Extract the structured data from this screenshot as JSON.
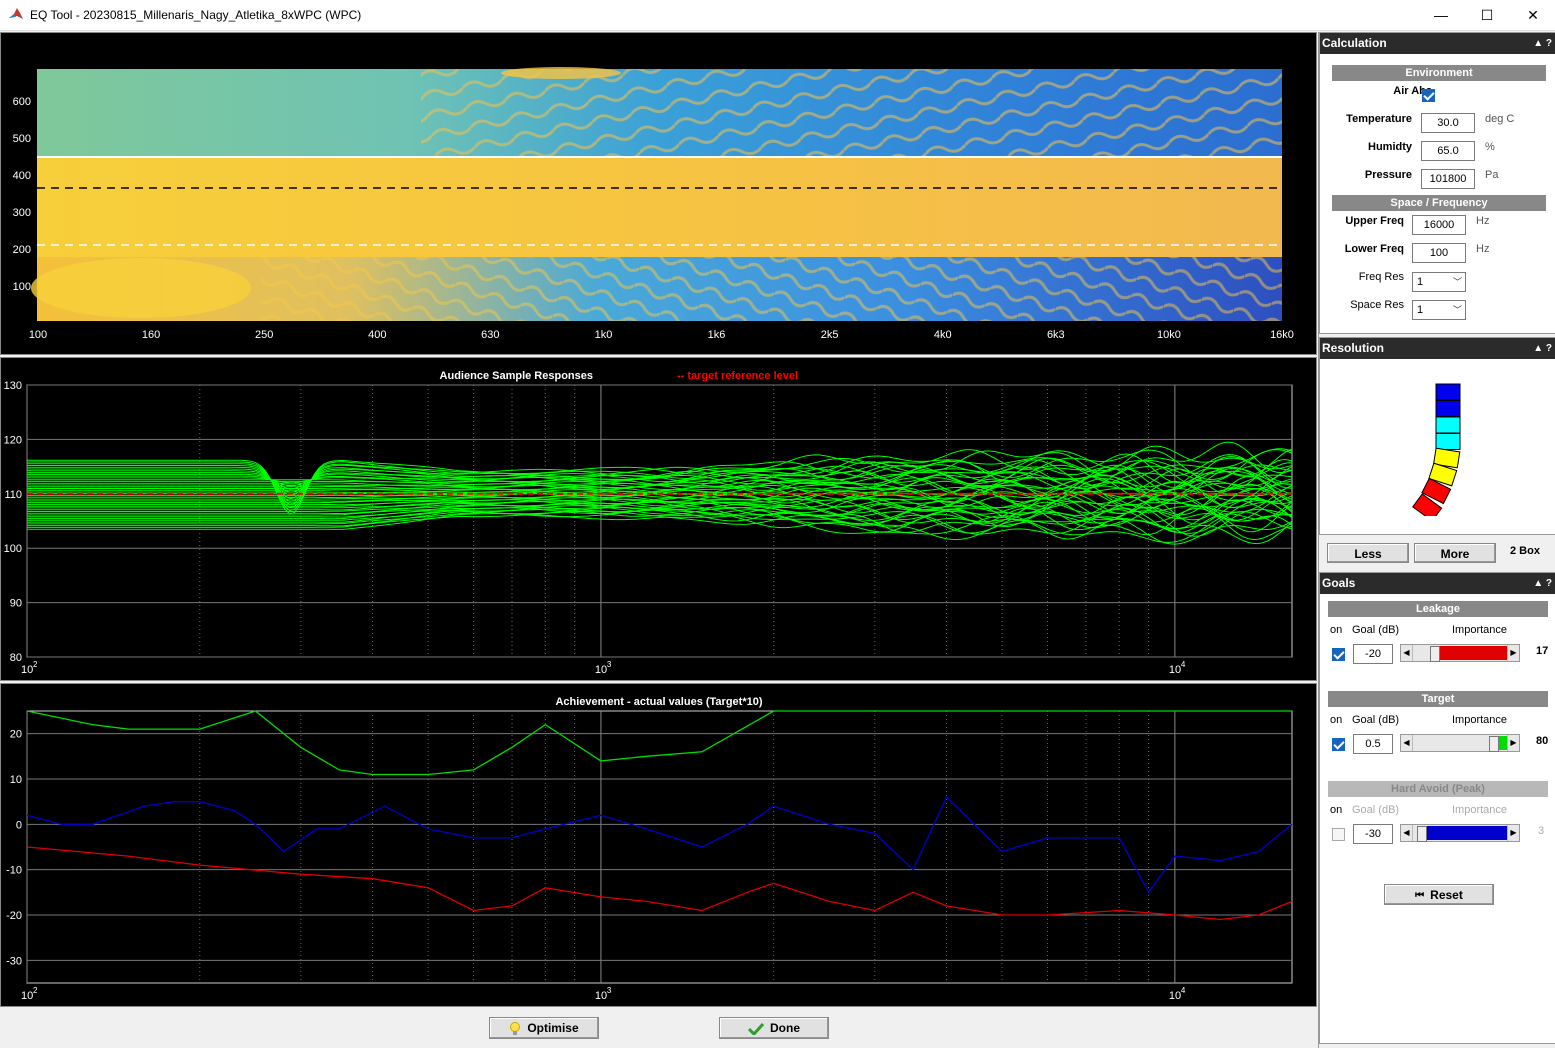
{
  "window": {
    "title": "EQ Tool - 20230815_Millenaris_Nagy_Atletika_8xWPC (WPC)",
    "minimize": "—",
    "maximize": "☐",
    "close": "✕"
  },
  "heatmap": {
    "y_ticks": [
      "600",
      "500",
      "400",
      "300",
      "200",
      "100"
    ],
    "x_ticks": [
      "100",
      "160",
      "250",
      "400",
      "630",
      "1k0",
      "1k6",
      "2k5",
      "4k0",
      "6k3",
      "10k0",
      "16k0"
    ]
  },
  "responses": {
    "title": "Audience Sample Responses",
    "subtitle": "-- target reference level",
    "y_ticks": [
      "130",
      "120",
      "110",
      "100",
      "90",
      "80"
    ],
    "x_ticks": [
      "10",
      "10",
      "10"
    ],
    "x_exp": [
      "2",
      "3",
      "4"
    ],
    "line_color": "#00ff00",
    "target_color": "#ff0000"
  },
  "chart_data": [
    {
      "type": "line",
      "title": "Audience Sample Responses",
      "xscale": "log",
      "xlim": [
        100,
        16000
      ],
      "ylim": [
        80,
        130
      ],
      "series": [
        {
          "name": "target reference level",
          "x": [
            100,
            16000
          ],
          "values": [
            110,
            110
          ]
        }
      ]
    },
    {
      "type": "line",
      "title": "Achievement - actual values (Target*10)",
      "xscale": "log",
      "xlim": [
        100,
        16000
      ],
      "ylim": [
        -35,
        25
      ],
      "series": [
        {
          "x": [
            100,
            130,
            150,
            200,
            250,
            300,
            350,
            400,
            500,
            600,
            700,
            800,
            1000,
            1200,
            1500,
            2000,
            2500,
            3000,
            4000,
            5000,
            6000,
            7000,
            8000,
            10000,
            12000,
            16000
          ],
          "values": [
            26,
            22,
            21,
            21,
            26,
            17,
            12,
            11,
            11,
            12,
            17,
            22,
            14,
            15,
            16,
            26,
            26,
            26,
            26,
            26,
            26,
            26,
            26,
            26,
            26,
            26
          ]
        },
        {
          "x": [
            100,
            115,
            130,
            160,
            180,
            200,
            230,
            250,
            280,
            320,
            350,
            420,
            500,
            600,
            700,
            800,
            1000,
            1200,
            1500,
            1800,
            2000,
            2500,
            3000,
            3500,
            4000,
            5000,
            6000,
            8000,
            9000,
            10000,
            12000,
            14000,
            16000
          ],
          "values": [
            2,
            0,
            0,
            4,
            5,
            5,
            3,
            0,
            -6,
            -1,
            -1,
            4,
            -1,
            -3,
            -3,
            -1,
            2,
            -1,
            -5,
            0,
            4,
            0,
            -2,
            -10,
            6,
            -6,
            -3,
            -3,
            -15,
            -7,
            -8,
            -6,
            0
          ]
        },
        {
          "x": [
            100,
            150,
            200,
            300,
            400,
            500,
            600,
            700,
            800,
            1000,
            1200,
            1500,
            1800,
            2000,
            2500,
            3000,
            3500,
            4000,
            5000,
            6000,
            8000,
            10000,
            12000,
            14000,
            16000
          ],
          "values": [
            -5,
            -7,
            -9,
            -11,
            -12,
            -14,
            -19,
            -18,
            -14,
            -16,
            -17,
            -19,
            -15,
            -13,
            -17,
            -19,
            -15,
            -18,
            -20,
            -20,
            -19,
            -20,
            -21,
            -20,
            -17
          ]
        }
      ]
    }
  ],
  "achieve": {
    "title": "Achievement - actual values (Target*10)",
    "y_ticks": [
      "20",
      "10",
      "0",
      "-10",
      "-20",
      "-30"
    ],
    "x_ticks": [
      "10",
      "10",
      "10"
    ],
    "x_exp": [
      "2",
      "3",
      "4"
    ],
    "colors": {
      "target": "#00dd00",
      "hardavoid": "#0000cc",
      "leakage": "#dd0000"
    }
  },
  "buttons": {
    "optimise": "Optimise",
    "done": "Done"
  },
  "calculation": {
    "header": "Calculation",
    "ctl": "▲ ?",
    "environment": "Environment",
    "air_abs": "Air Abs",
    "air_abs_on": true,
    "temperature_label": "Temperature",
    "temperature": "30.0",
    "temperature_unit": "deg C",
    "humidity_label": "Humidty",
    "humidity": "65.0",
    "humidity_unit": "%",
    "pressure_label": "Pressure",
    "pressure": "101800",
    "pressure_unit": "Pa",
    "space_freq": "Space / Frequency",
    "upper_label": "Upper Freq",
    "upper": "16000",
    "upper_unit": "Hz",
    "lower_label": "Lower Freq",
    "lower": "100",
    "lower_unit": "Hz",
    "freqres_label": "Freq Res",
    "freqres": "1",
    "spaceres_label": "Space Res",
    "spaceres": "1"
  },
  "resolution": {
    "header": "Resolution",
    "ctl": "▲ ?",
    "less": "Less",
    "more": "More",
    "count": "2 Box",
    "box_colors": [
      "#0000ee",
      "#0000ee",
      "#00ffff",
      "#00ffff",
      "#ffff00",
      "#ffff00",
      "#ff0000",
      "#ff0000"
    ]
  },
  "goals": {
    "header": "Goals",
    "ctl": "▲ ?",
    "on_label": "on",
    "goal_label": "Goal (dB)",
    "importance_label": "Importance",
    "leakage": {
      "title": "Leakage",
      "on": true,
      "goal": "-20",
      "importance": "17",
      "level": 0.17,
      "color": "#e00000"
    },
    "target": {
      "title": "Target",
      "on": true,
      "goal": "0.5",
      "importance": "80",
      "level": 0.8,
      "color": "#00dd00"
    },
    "hardavoid": {
      "title": "Hard Avoid  (Peak)",
      "on": false,
      "goal": "-30",
      "importance": "3",
      "level": 0.03,
      "color": "#0000cc"
    },
    "reset": "Reset"
  }
}
